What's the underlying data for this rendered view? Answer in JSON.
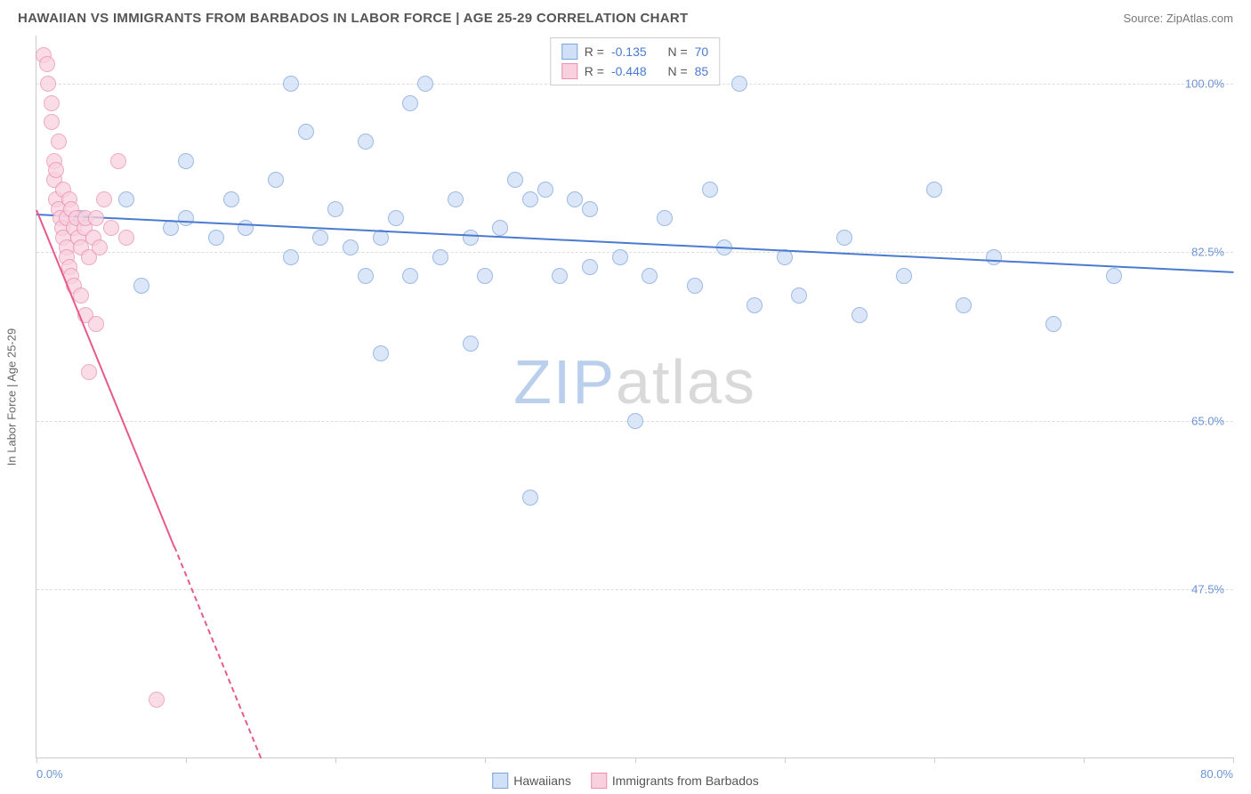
{
  "header": {
    "title": "HAWAIIAN VS IMMIGRANTS FROM BARBADOS IN LABOR FORCE | AGE 25-29 CORRELATION CHART",
    "source_prefix": "Source: ",
    "source_name": "ZipAtlas.com"
  },
  "chart": {
    "type": "scatter",
    "ylabel": "In Labor Force | Age 25-29",
    "watermark_a": "ZIP",
    "watermark_b": "atlas",
    "watermark_color_a": "#b9cfec",
    "watermark_color_b": "#d9d9d9",
    "background_color": "#ffffff",
    "grid_color": "#dddddd",
    "axis_color": "#cccccc",
    "tick_text_color": "#6b93d6",
    "label_text_color": "#666666",
    "xlim": [
      0,
      80
    ],
    "ylim": [
      30,
      105
    ],
    "xtick_positions": [
      0,
      10,
      20,
      30,
      40,
      50,
      60,
      70,
      80
    ],
    "xaxis_min_label": "0.0%",
    "xaxis_max_label": "80.0%",
    "yticks": [
      {
        "v": 47.5,
        "label": "47.5%"
      },
      {
        "v": 65.0,
        "label": "65.0%"
      },
      {
        "v": 82.5,
        "label": "82.5%"
      },
      {
        "v": 100.0,
        "label": "100.0%"
      }
    ],
    "series": [
      {
        "key": "hawaiians",
        "label": "Hawaiians",
        "fill": "#cfe0f7",
        "stroke": "#7ba3de",
        "line_color": "#4a7bd0",
        "R": "-0.135",
        "N": "70",
        "regression": {
          "x1": 0,
          "y1": 86.5,
          "x2": 80,
          "y2": 80.5,
          "dashed": false
        },
        "points": [
          [
            3,
            86
          ],
          [
            6,
            88
          ],
          [
            7,
            79
          ],
          [
            9,
            85
          ],
          [
            10,
            92
          ],
          [
            10,
            86
          ],
          [
            12,
            84
          ],
          [
            13,
            88
          ],
          [
            14,
            85
          ],
          [
            16,
            90
          ],
          [
            17,
            100
          ],
          [
            17,
            82
          ],
          [
            18,
            95
          ],
          [
            19,
            84
          ],
          [
            20,
            87
          ],
          [
            21,
            83
          ],
          [
            22,
            80
          ],
          [
            22,
            94
          ],
          [
            23,
            84
          ],
          [
            23,
            72
          ],
          [
            24,
            86
          ],
          [
            25,
            98
          ],
          [
            25,
            80
          ],
          [
            26,
            100
          ],
          [
            27,
            82
          ],
          [
            28,
            88
          ],
          [
            29,
            84
          ],
          [
            29,
            73
          ],
          [
            30,
            80
          ],
          [
            31,
            85
          ],
          [
            32,
            90
          ],
          [
            33,
            88
          ],
          [
            33,
            57
          ],
          [
            34,
            89
          ],
          [
            35,
            80
          ],
          [
            36,
            88
          ],
          [
            37,
            81
          ],
          [
            37,
            87
          ],
          [
            39,
            82
          ],
          [
            40,
            65
          ],
          [
            41,
            80
          ],
          [
            42,
            86
          ],
          [
            44,
            79
          ],
          [
            45,
            89
          ],
          [
            46,
            83
          ],
          [
            47,
            100
          ],
          [
            48,
            77
          ],
          [
            50,
            82
          ],
          [
            51,
            78
          ],
          [
            54,
            84
          ],
          [
            55,
            76
          ],
          [
            58,
            80
          ],
          [
            60,
            89
          ],
          [
            62,
            77
          ],
          [
            64,
            82
          ],
          [
            68,
            75
          ],
          [
            72,
            80
          ]
        ]
      },
      {
        "key": "barbados",
        "label": "Immigrants from Barbados",
        "fill": "#f9d1de",
        "stroke": "#e98fb0",
        "line_color": "#e75a8a",
        "R": "-0.448",
        "N": "85",
        "regression": {
          "x1": 0,
          "y1": 87,
          "x2": 15,
          "y2": 30,
          "dashed": true,
          "dash_break_y": 52
        },
        "points": [
          [
            0.5,
            103
          ],
          [
            0.7,
            102
          ],
          [
            0.8,
            100
          ],
          [
            1,
            98
          ],
          [
            1,
            96
          ],
          [
            1.2,
            92
          ],
          [
            1.2,
            90
          ],
          [
            1.3,
            91
          ],
          [
            1.3,
            88
          ],
          [
            1.5,
            94
          ],
          [
            1.5,
            87
          ],
          [
            1.6,
            86
          ],
          [
            1.7,
            85
          ],
          [
            1.8,
            89
          ],
          [
            1.8,
            84
          ],
          [
            2,
            86
          ],
          [
            2,
            83
          ],
          [
            2,
            82
          ],
          [
            2.2,
            88
          ],
          [
            2.2,
            81
          ],
          [
            2.3,
            87
          ],
          [
            2.3,
            80
          ],
          [
            2.5,
            85
          ],
          [
            2.5,
            79
          ],
          [
            2.7,
            86
          ],
          [
            2.8,
            84
          ],
          [
            3,
            83
          ],
          [
            3,
            78
          ],
          [
            3.2,
            85
          ],
          [
            3.3,
            76
          ],
          [
            3.3,
            86
          ],
          [
            3.5,
            82
          ],
          [
            3.5,
            70
          ],
          [
            3.8,
            84
          ],
          [
            4,
            86
          ],
          [
            4,
            75
          ],
          [
            4.2,
            83
          ],
          [
            4.5,
            88
          ],
          [
            5,
            85
          ],
          [
            5.5,
            92
          ],
          [
            6,
            84
          ],
          [
            8,
            36
          ]
        ]
      }
    ],
    "stats_box": {
      "R_prefix": "R = ",
      "N_prefix": "N = "
    },
    "point_radius": 9,
    "point_opacity": 0.75
  }
}
